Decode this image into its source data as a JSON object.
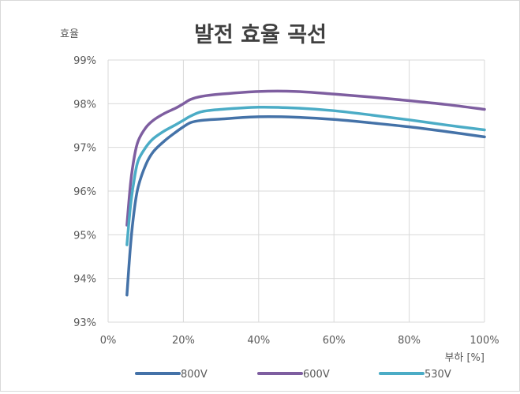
{
  "chart_data": {
    "type": "line",
    "title": "발전 효율 곡선",
    "ylabel": "효율",
    "xlabel": "부하 [%]",
    "xlim": [
      0,
      100
    ],
    "ylim": [
      93,
      99
    ],
    "grid": true,
    "legend_position": "bottom",
    "x_ticks": [
      "0%",
      "20%",
      "40%",
      "60%",
      "80%",
      "100%"
    ],
    "y_ticks": [
      "93%",
      "94%",
      "95%",
      "96%",
      "97%",
      "98%",
      "99%"
    ],
    "series": [
      {
        "name": "800V",
        "color": "#4472a8",
        "x": [
          5,
          6,
          7,
          8,
          10,
          12,
          15,
          18,
          20,
          22,
          25,
          30,
          40,
          50,
          60,
          70,
          80,
          90,
          100
        ],
        "values": [
          93.62,
          94.8,
          95.6,
          96.1,
          96.6,
          96.9,
          97.15,
          97.35,
          97.47,
          97.57,
          97.62,
          97.65,
          97.7,
          97.69,
          97.64,
          97.56,
          97.47,
          97.36,
          97.24
        ]
      },
      {
        "name": "600V",
        "color": "#7e5ea0",
        "x": [
          5,
          6,
          7,
          8,
          10,
          12,
          15,
          18,
          20,
          22,
          25,
          30,
          40,
          50,
          60,
          70,
          80,
          90,
          100
        ],
        "values": [
          95.22,
          96.2,
          96.8,
          97.15,
          97.45,
          97.62,
          97.78,
          97.9,
          98.0,
          98.1,
          98.17,
          98.22,
          98.28,
          98.28,
          98.22,
          98.15,
          98.07,
          97.98,
          97.87
        ]
      },
      {
        "name": "530V",
        "color": "#4bacc6",
        "x": [
          5,
          6,
          7,
          8,
          10,
          12,
          15,
          18,
          20,
          22,
          25,
          30,
          40,
          50,
          60,
          70,
          80,
          90,
          100
        ],
        "values": [
          94.77,
          95.7,
          96.3,
          96.7,
          97.0,
          97.2,
          97.38,
          97.52,
          97.62,
          97.72,
          97.82,
          97.87,
          97.92,
          97.9,
          97.84,
          97.74,
          97.63,
          97.51,
          97.4
        ]
      }
    ]
  }
}
